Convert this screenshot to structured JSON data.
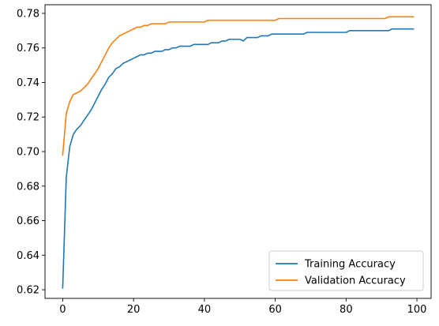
{
  "chart_data": {
    "type": "line",
    "title": "",
    "xlabel": "",
    "ylabel": "",
    "xlim": [
      -5,
      104
    ],
    "ylim": [
      0.615,
      0.785
    ],
    "xticks": [
      0,
      20,
      40,
      60,
      80,
      100
    ],
    "yticks": [
      0.62,
      0.64,
      0.66,
      0.68,
      0.7,
      0.72,
      0.74,
      0.76,
      0.78
    ],
    "grid": false,
    "legend_position": "lower right",
    "series": [
      {
        "name": "Training Accuracy",
        "color": "#1f77b4",
        "x": [
          0,
          1,
          2,
          3,
          4,
          5,
          6,
          7,
          8,
          9,
          10,
          11,
          12,
          13,
          14,
          15,
          16,
          17,
          18,
          19,
          20,
          21,
          22,
          23,
          24,
          25,
          26,
          27,
          28,
          29,
          30,
          31,
          32,
          33,
          34,
          35,
          36,
          37,
          38,
          39,
          40,
          41,
          42,
          43,
          44,
          45,
          46,
          47,
          48,
          49,
          50,
          51,
          52,
          53,
          54,
          55,
          56,
          57,
          58,
          59,
          60,
          61,
          62,
          63,
          64,
          65,
          66,
          67,
          68,
          69,
          70,
          71,
          72,
          73,
          74,
          75,
          76,
          77,
          78,
          79,
          80,
          81,
          82,
          83,
          84,
          85,
          86,
          87,
          88,
          89,
          90,
          91,
          92,
          93,
          94,
          95,
          96,
          97,
          98,
          99
        ],
        "values": [
          0.621,
          0.685,
          0.703,
          0.71,
          0.713,
          0.715,
          0.718,
          0.721,
          0.724,
          0.728,
          0.732,
          0.736,
          0.739,
          0.743,
          0.745,
          0.748,
          0.749,
          0.751,
          0.752,
          0.753,
          0.754,
          0.755,
          0.756,
          0.756,
          0.757,
          0.757,
          0.758,
          0.758,
          0.758,
          0.759,
          0.759,
          0.76,
          0.76,
          0.761,
          0.761,
          0.761,
          0.761,
          0.762,
          0.762,
          0.762,
          0.762,
          0.762,
          0.763,
          0.763,
          0.763,
          0.764,
          0.764,
          0.765,
          0.765,
          0.765,
          0.765,
          0.764,
          0.766,
          0.766,
          0.766,
          0.766,
          0.767,
          0.767,
          0.767,
          0.768,
          0.768,
          0.768,
          0.768,
          0.768,
          0.768,
          0.768,
          0.768,
          0.768,
          0.768,
          0.769,
          0.769,
          0.769,
          0.769,
          0.769,
          0.769,
          0.769,
          0.769,
          0.769,
          0.769,
          0.769,
          0.769,
          0.77,
          0.77,
          0.77,
          0.77,
          0.77,
          0.77,
          0.77,
          0.77,
          0.77,
          0.77,
          0.77,
          0.77,
          0.771,
          0.771,
          0.771,
          0.771,
          0.771,
          0.771,
          0.771
        ]
      },
      {
        "name": "Validation Accuracy",
        "color": "#ff7f0e",
        "x": [
          0,
          1,
          2,
          3,
          4,
          5,
          6,
          7,
          8,
          9,
          10,
          11,
          12,
          13,
          14,
          15,
          16,
          17,
          18,
          19,
          20,
          21,
          22,
          23,
          24,
          25,
          26,
          27,
          28,
          29,
          30,
          31,
          32,
          33,
          34,
          35,
          36,
          37,
          38,
          39,
          40,
          41,
          42,
          43,
          44,
          45,
          46,
          47,
          48,
          49,
          50,
          51,
          52,
          53,
          54,
          55,
          56,
          57,
          58,
          59,
          60,
          61,
          62,
          63,
          64,
          65,
          66,
          67,
          68,
          69,
          70,
          71,
          72,
          73,
          74,
          75,
          76,
          77,
          78,
          79,
          80,
          81,
          82,
          83,
          84,
          85,
          86,
          87,
          88,
          89,
          90,
          91,
          92,
          93,
          94,
          95,
          96,
          97,
          98,
          99
        ],
        "values": [
          0.698,
          0.722,
          0.729,
          0.733,
          0.734,
          0.735,
          0.737,
          0.739,
          0.742,
          0.745,
          0.748,
          0.752,
          0.756,
          0.76,
          0.763,
          0.765,
          0.767,
          0.768,
          0.769,
          0.77,
          0.771,
          0.772,
          0.772,
          0.773,
          0.773,
          0.774,
          0.774,
          0.774,
          0.774,
          0.774,
          0.775,
          0.775,
          0.775,
          0.775,
          0.775,
          0.775,
          0.775,
          0.775,
          0.775,
          0.775,
          0.775,
          0.776,
          0.776,
          0.776,
          0.776,
          0.776,
          0.776,
          0.776,
          0.776,
          0.776,
          0.776,
          0.776,
          0.776,
          0.776,
          0.776,
          0.776,
          0.776,
          0.776,
          0.776,
          0.776,
          0.776,
          0.777,
          0.777,
          0.777,
          0.777,
          0.777,
          0.777,
          0.777,
          0.777,
          0.777,
          0.777,
          0.777,
          0.777,
          0.777,
          0.777,
          0.777,
          0.777,
          0.777,
          0.777,
          0.777,
          0.777,
          0.777,
          0.777,
          0.777,
          0.777,
          0.777,
          0.777,
          0.777,
          0.777,
          0.777,
          0.777,
          0.777,
          0.778,
          0.778,
          0.778,
          0.778,
          0.778,
          0.778,
          0.778,
          0.778
        ]
      }
    ]
  }
}
